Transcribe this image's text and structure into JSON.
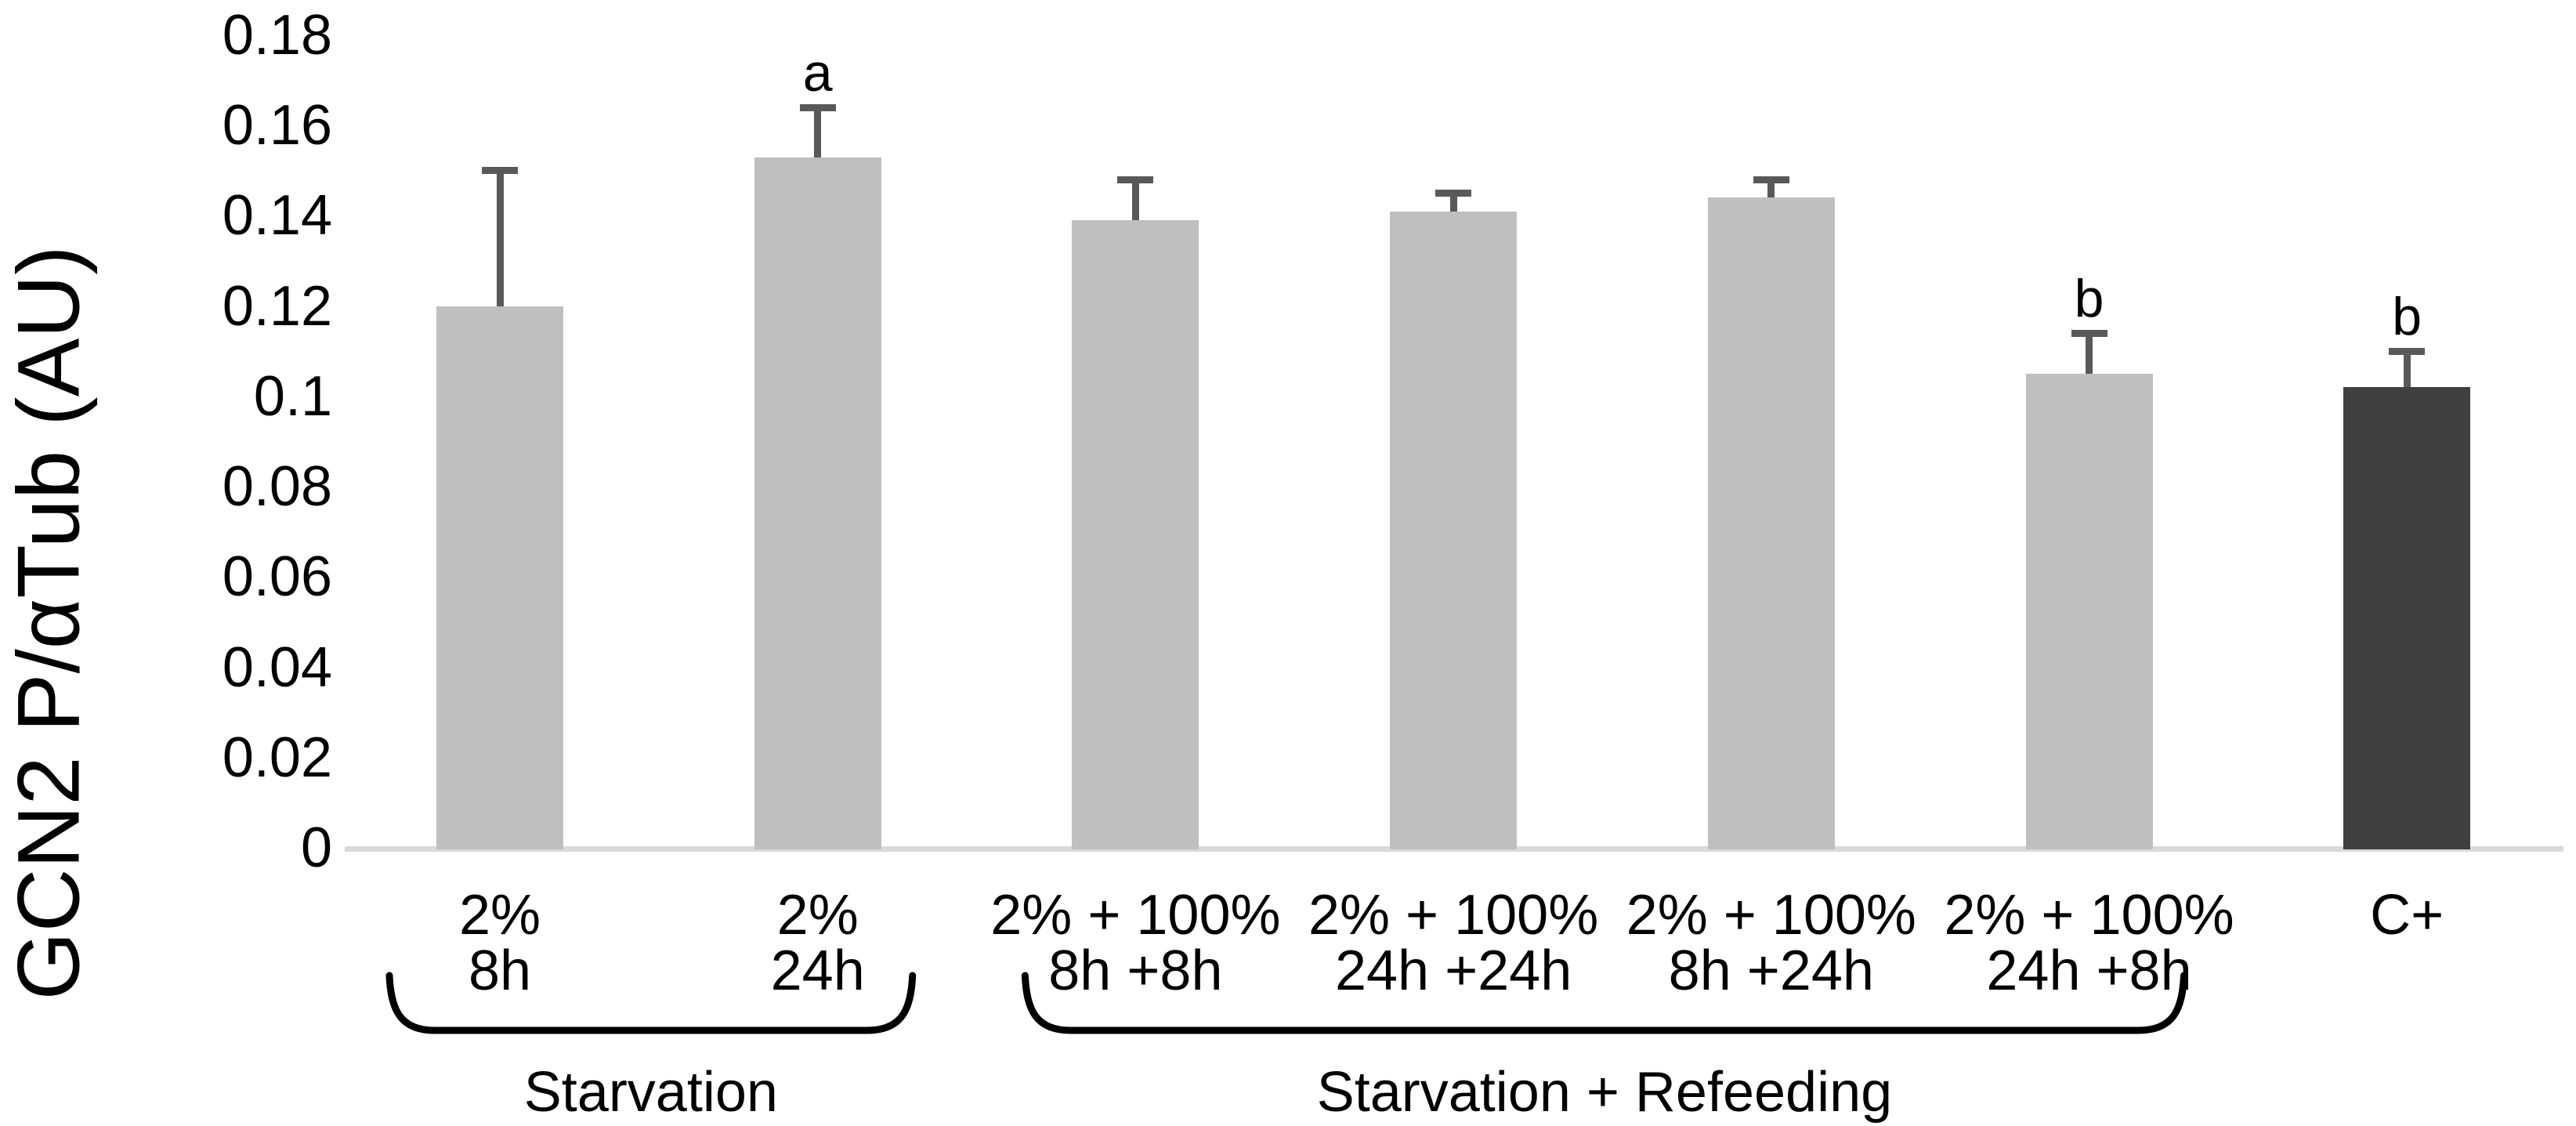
{
  "chart_data": {
    "type": "bar",
    "title": "",
    "ylabel": "GCN2 P/αTub (AU)",
    "xlabel": "",
    "ylim": [
      0,
      0.18
    ],
    "grid": false,
    "legend_position": "none",
    "yticks": [
      {
        "value": 0.18,
        "label": "0.18"
      },
      {
        "value": 0.16,
        "label": "0.16"
      },
      {
        "value": 0.14,
        "label": "0.14"
      },
      {
        "value": 0.12,
        "label": "0.12"
      },
      {
        "value": 0.1,
        "label": "0.1"
      },
      {
        "value": 0.08,
        "label": "0.08"
      },
      {
        "value": 0.06,
        "label": "0.06"
      },
      {
        "value": 0.04,
        "label": "0.04"
      },
      {
        "value": 0.02,
        "label": "0.02"
      },
      {
        "value": 0.0,
        "label": "0"
      }
    ],
    "bars": [
      {
        "label_line1": "2%",
        "label_line2": "8h",
        "value": 0.12,
        "error": 0.03,
        "letter": "",
        "color": "#bfbfbf"
      },
      {
        "label_line1": "2%",
        "label_line2": "24h",
        "value": 0.153,
        "error": 0.011,
        "letter": "a",
        "color": "#bfbfbf"
      },
      {
        "label_line1": "2% + 100%",
        "label_line2": "8h +8h",
        "value": 0.139,
        "error": 0.009,
        "letter": "",
        "color": "#bfbfbf"
      },
      {
        "label_line1": "2% + 100%",
        "label_line2": "24h +24h",
        "value": 0.141,
        "error": 0.004,
        "letter": "",
        "color": "#bfbfbf"
      },
      {
        "label_line1": "2% + 100%",
        "label_line2": "8h +24h",
        "value": 0.144,
        "error": 0.004,
        "letter": "",
        "color": "#bfbfbf"
      },
      {
        "label_line1": "2% + 100%",
        "label_line2": "24h +8h",
        "value": 0.105,
        "error": 0.009,
        "letter": "b",
        "color": "#bfbfbf"
      },
      {
        "label_line1": "C+",
        "label_line2": "",
        "value": 0.102,
        "error": 0.008,
        "letter": "b",
        "color": "#3f3f3f"
      }
    ],
    "groups": [
      {
        "label": "Starvation",
        "from_bar": 0,
        "to_bar": 1
      },
      {
        "label": "Starvation + Refeeding",
        "from_bar": 2,
        "to_bar": 5
      }
    ],
    "colors": {
      "bar_light": "#bfbfbf",
      "bar_dark": "#3f3f3f",
      "error_bar": "#595959",
      "axis_line": "#d9d9d9",
      "text": "#000000",
      "bracket": "#000000"
    }
  }
}
